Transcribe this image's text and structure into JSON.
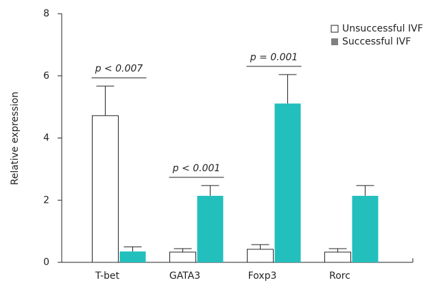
{
  "chart_data": {
    "type": "bar",
    "y_label": "Relative expression",
    "categories": [
      "T-bet",
      "GATA3",
      "Foxp3",
      "Rorc"
    ],
    "series": [
      {
        "name": "Unsuccessful IVF",
        "color": "#ffffff",
        "legend_color": "#ffffff",
        "values": [
          4.72,
          0.33,
          0.42,
          0.33
        ],
        "errors": [
          0.95,
          0.11,
          0.15,
          0.11
        ]
      },
      {
        "name": "Successful IVF",
        "color": "#22bfbd",
        "legend_color": "#808080",
        "values": [
          0.35,
          2.14,
          5.11,
          2.14
        ],
        "errors": [
          0.15,
          0.33,
          0.93,
          0.33
        ]
      }
    ],
    "annotations": [
      {
        "text": "p < 0.007",
        "category": 0
      },
      {
        "text": "p < 0.001",
        "category": 1
      },
      {
        "text": "p = 0.001",
        "category": 2
      }
    ],
    "ylim": [
      0,
      8
    ],
    "yticks": [
      0,
      2,
      4,
      6,
      8
    ],
    "legend": "upper right"
  }
}
